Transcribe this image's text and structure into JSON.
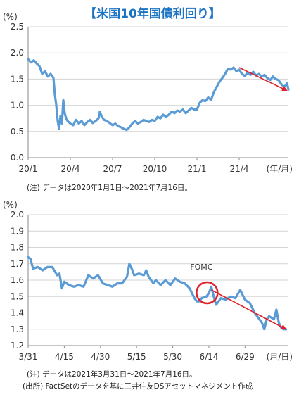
{
  "title": "【米国10年国債利回り】",
  "colors": {
    "title": "#1b73c4",
    "line": "#5b9bd5",
    "arrow": "#e0202a",
    "circle": "#e0202a",
    "axis": "#888888",
    "grid": "#d4d4d4"
  },
  "notes": {
    "chart1": "(注) データは2020年1月1日～2021年7月16日。",
    "chart2_period": "(注) データは2021年3月31日～2021年7月16日。",
    "chart2_source": "(出所) FactSetのデータを基に三井住友DSアセットマネジメント作成"
  },
  "chart_data": [
    {
      "type": "line",
      "ylabel": "(%)",
      "xlabel": "(年/月)",
      "ylim": [
        0.0,
        2.5
      ],
      "yticks": [
        "0.0",
        "0.5",
        "1.0",
        "1.5",
        "2.0",
        "2.5"
      ],
      "xlim": [
        0,
        18.5
      ],
      "xticks": [
        {
          "label": "20/1",
          "x": 0
        },
        {
          "label": "20/4",
          "x": 3
        },
        {
          "label": "20/7",
          "x": 6
        },
        {
          "label": "20/10",
          "x": 9
        },
        {
          "label": "21/1",
          "x": 12
        },
        {
          "label": "21/4",
          "x": 15
        }
      ],
      "series": [
        {
          "x": [
            0,
            0.2,
            0.4,
            0.6,
            0.8,
            1.0,
            1.2,
            1.4,
            1.6,
            1.8,
            1.9,
            2.0,
            2.1,
            2.2,
            2.3,
            2.4,
            2.5,
            2.6,
            2.7,
            2.8,
            3.0,
            3.2,
            3.4,
            3.6,
            3.8,
            4.0,
            4.2,
            4.4,
            4.6,
            4.8,
            5.0,
            5.1,
            5.2,
            5.4,
            5.6,
            5.8,
            6.0,
            6.2,
            6.4,
            6.6,
            6.8,
            7.0,
            7.2,
            7.4,
            7.6,
            7.8,
            8.0,
            8.2,
            8.4,
            8.6,
            8.8,
            9.0,
            9.2,
            9.4,
            9.6,
            9.8,
            10.0,
            10.2,
            10.4,
            10.6,
            10.8,
            11.0,
            11.2,
            11.4,
            11.6,
            11.8,
            12.0,
            12.2,
            12.4,
            12.6,
            12.8,
            13.0,
            13.2,
            13.4,
            13.6,
            13.8,
            14.0,
            14.2,
            14.4,
            14.6,
            14.8,
            15.0,
            15.2,
            15.4,
            15.6,
            15.8,
            16.0,
            16.2,
            16.4,
            16.6,
            16.8,
            17.0,
            17.2,
            17.4,
            17.6,
            17.8,
            18.0,
            18.2,
            18.4,
            18.5
          ],
          "y": [
            1.88,
            1.82,
            1.86,
            1.8,
            1.75,
            1.6,
            1.65,
            1.55,
            1.6,
            1.52,
            1.2,
            1.0,
            0.7,
            0.55,
            0.8,
            0.65,
            1.1,
            0.85,
            0.75,
            0.7,
            0.65,
            0.62,
            0.72,
            0.65,
            0.7,
            0.62,
            0.68,
            0.72,
            0.66,
            0.7,
            0.75,
            0.88,
            0.8,
            0.72,
            0.7,
            0.66,
            0.62,
            0.65,
            0.6,
            0.58,
            0.55,
            0.53,
            0.58,
            0.65,
            0.7,
            0.65,
            0.68,
            0.72,
            0.7,
            0.68,
            0.72,
            0.7,
            0.78,
            0.75,
            0.82,
            0.78,
            0.82,
            0.88,
            0.85,
            0.9,
            0.88,
            0.92,
            0.85,
            0.9,
            0.95,
            0.92,
            0.92,
            1.05,
            1.1,
            1.08,
            1.15,
            1.1,
            1.25,
            1.35,
            1.45,
            1.52,
            1.6,
            1.7,
            1.68,
            1.72,
            1.65,
            1.68,
            1.6,
            1.56,
            1.62,
            1.58,
            1.64,
            1.57,
            1.6,
            1.55,
            1.58,
            1.52,
            1.48,
            1.55,
            1.5,
            1.48,
            1.4,
            1.35,
            1.42,
            1.3
          ]
        }
      ],
      "trend_arrow": {
        "from": [
          15.0,
          1.72
        ],
        "to": [
          18.4,
          1.28
        ]
      }
    },
    {
      "type": "line",
      "ylabel": "(%)",
      "xlabel": "(月/日)",
      "ylim": [
        1.2,
        2.0
      ],
      "yticks": [
        "1.2",
        "1.3",
        "1.4",
        "1.5",
        "1.6",
        "1.7",
        "1.8",
        "1.9",
        "2.0"
      ],
      "xlim": [
        0,
        108
      ],
      "xticks": [
        {
          "label": "3/31",
          "x": 0
        },
        {
          "label": "4/15",
          "x": 15
        },
        {
          "label": "4/30",
          "x": 30
        },
        {
          "label": "5/15",
          "x": 45
        },
        {
          "label": "5/30",
          "x": 60
        },
        {
          "label": "6/14",
          "x": 75
        },
        {
          "label": "6/29",
          "x": 90
        }
      ],
      "series": [
        {
          "x": [
            0,
            1,
            2,
            4,
            6,
            8,
            10,
            12,
            13,
            14,
            15,
            17,
            19,
            21,
            23,
            25,
            27,
            29,
            31,
            33,
            35,
            37,
            39,
            41,
            42,
            43,
            44,
            46,
            48,
            49,
            50,
            52,
            53,
            55,
            57,
            59,
            61,
            63,
            65,
            67,
            69,
            70,
            71,
            72,
            74,
            75,
            76,
            77,
            78,
            80,
            82,
            84,
            86,
            88,
            90,
            92,
            94,
            96,
            97,
            98,
            99,
            100,
            102,
            103,
            104,
            105,
            106,
            107
          ],
          "y": [
            1.74,
            1.73,
            1.67,
            1.68,
            1.66,
            1.68,
            1.68,
            1.63,
            1.64,
            1.55,
            1.59,
            1.57,
            1.56,
            1.57,
            1.56,
            1.63,
            1.61,
            1.63,
            1.58,
            1.57,
            1.56,
            1.58,
            1.58,
            1.62,
            1.7,
            1.67,
            1.63,
            1.64,
            1.63,
            1.66,
            1.62,
            1.58,
            1.6,
            1.57,
            1.6,
            1.57,
            1.61,
            1.59,
            1.58,
            1.55,
            1.49,
            1.47,
            1.47,
            1.49,
            1.5,
            1.52,
            1.56,
            1.5,
            1.45,
            1.49,
            1.48,
            1.5,
            1.49,
            1.54,
            1.48,
            1.46,
            1.4,
            1.36,
            1.34,
            1.3,
            1.36,
            1.38,
            1.36,
            1.42,
            1.34,
            1.31,
            1.3,
            1.3
          ]
        }
      ],
      "annotation": {
        "text": "FOMC",
        "x": 76,
        "y": 1.54
      },
      "trend_arrow": {
        "from": [
          76,
          1.54
        ],
        "to": [
          107,
          1.3
        ]
      }
    }
  ]
}
